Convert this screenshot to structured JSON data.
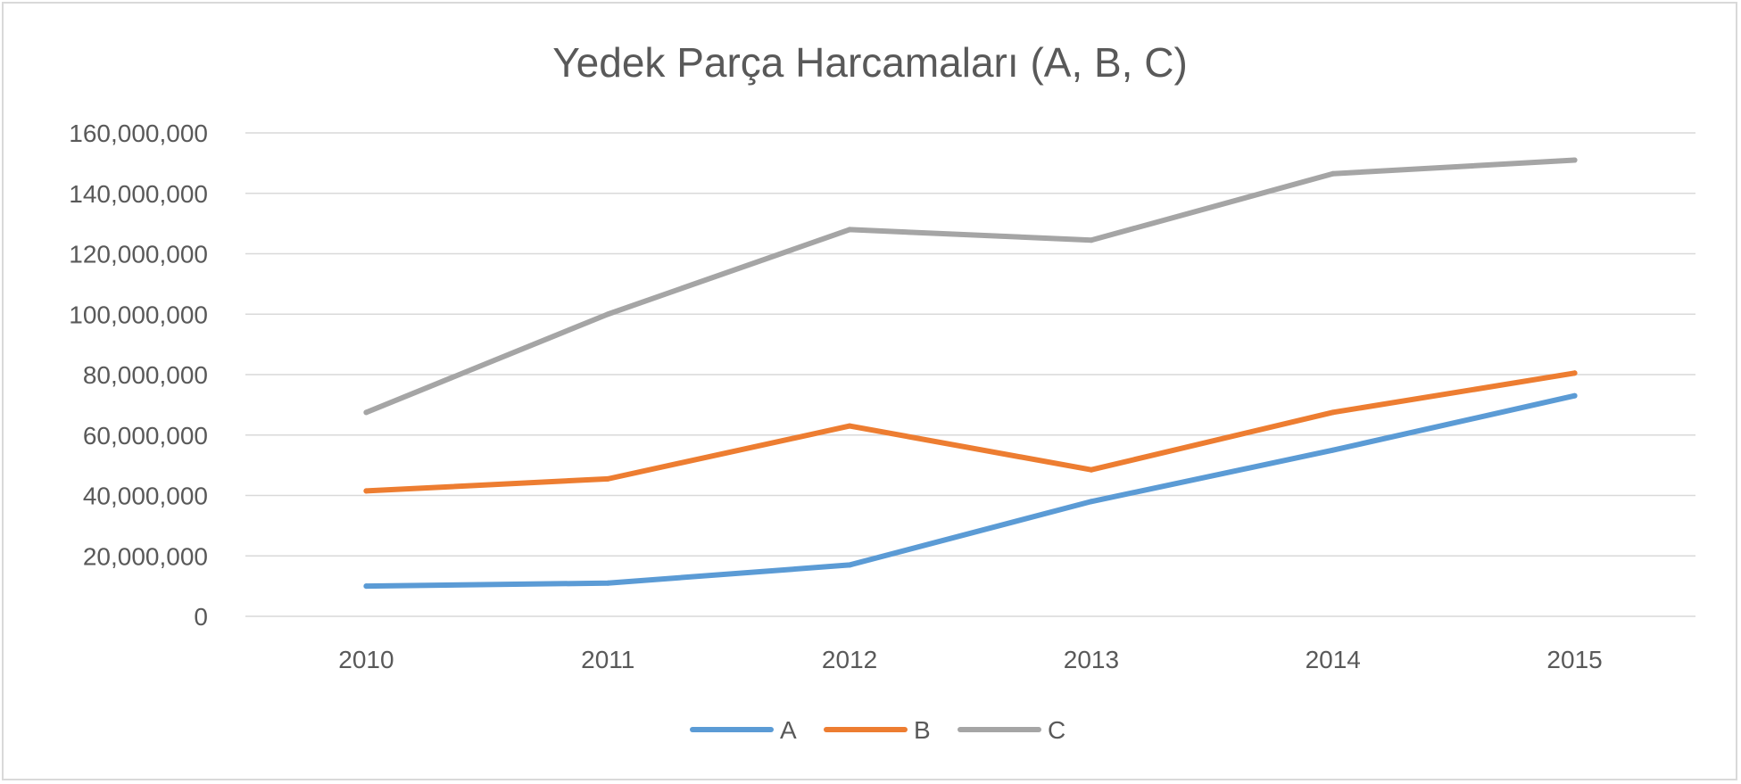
{
  "chart_data": {
    "type": "line",
    "title": "Yedek Parça Harcamaları (A, B, C)",
    "xlabel": "",
    "ylabel": "",
    "categories": [
      "2010",
      "2011",
      "2012",
      "2013",
      "2014",
      "2015"
    ],
    "ylim": [
      0,
      160000000
    ],
    "y_ticks": [
      "0",
      "20,000,000",
      "40,000,000",
      "60,000,000",
      "80,000,000",
      "100,000,000",
      "120,000,000",
      "140,000,000",
      "160,000,000"
    ],
    "grid": true,
    "legend_position": "bottom",
    "series": [
      {
        "name": "A",
        "color": "#5b9bd5",
        "values": [
          10000000,
          11000000,
          17000000,
          38000000,
          55000000,
          73000000
        ]
      },
      {
        "name": "B",
        "color": "#ed7d31",
        "values": [
          41500000,
          45500000,
          63000000,
          48500000,
          67500000,
          80500000
        ]
      },
      {
        "name": "C",
        "color": "#a5a5a5",
        "values": [
          67500000,
          100000000,
          128000000,
          124500000,
          146500000,
          151000000
        ]
      }
    ]
  }
}
